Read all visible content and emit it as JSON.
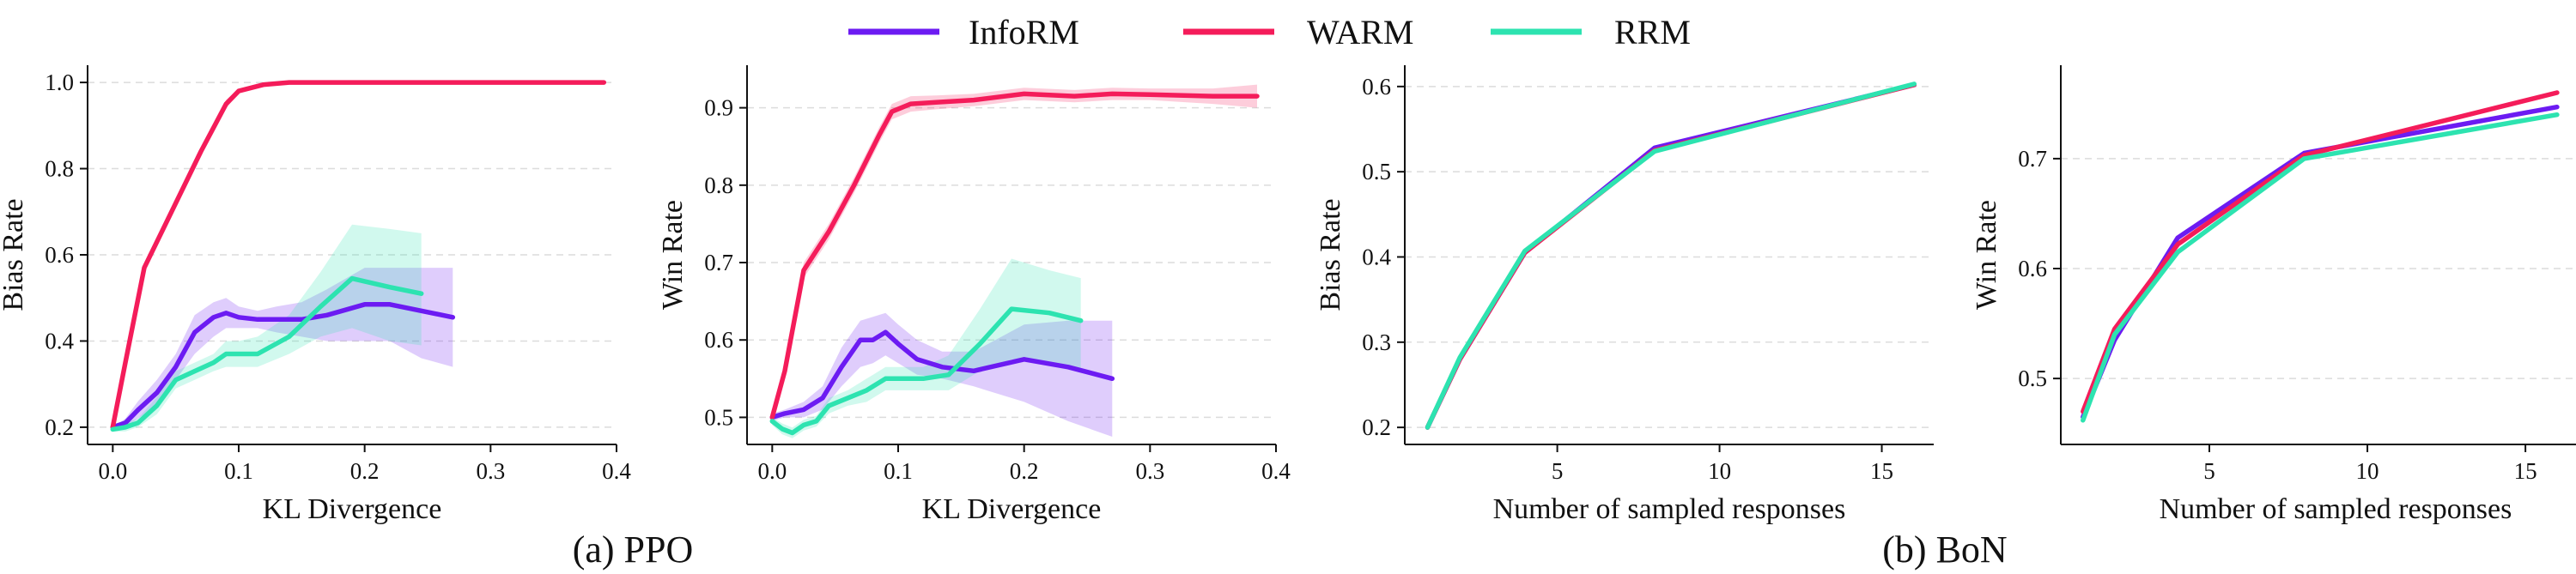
{
  "legend": [
    {
      "name": "InfoRM",
      "color": "#6c1bf2"
    },
    {
      "name": "WARM",
      "color": "#f41c5a"
    },
    {
      "name": "RRM",
      "color": "#2de3b0"
    }
  ],
  "captions": {
    "ppo": "(a) PPO",
    "bon": "(b) BoN"
  },
  "chart_data": [
    {
      "type": "line",
      "xlabel": "KL Divergence",
      "ylabel": "Bias Rate",
      "xlim": [
        -0.02,
        0.4
      ],
      "ylim": [
        0.16,
        1.04
      ],
      "xticks": [
        0.0,
        0.1,
        0.2,
        0.3,
        0.4
      ],
      "xtick_labels": [
        "0.0",
        "0.1",
        "0.2",
        "0.3",
        "0.4"
      ],
      "yticks": [
        0.2,
        0.4,
        0.6,
        0.8,
        1.0
      ],
      "ytick_labels": [
        "0.2",
        "0.4",
        "0.6",
        "0.8",
        "1.0"
      ],
      "grid": "horizontal dashed",
      "series": [
        {
          "name": "InfoRM",
          "color": "#6c1bf2",
          "x": [
            0.0,
            0.01,
            0.02,
            0.035,
            0.05,
            0.065,
            0.08,
            0.09,
            0.1,
            0.115,
            0.13,
            0.15,
            0.17,
            0.2,
            0.22,
            0.245,
            0.27
          ],
          "y": [
            0.2,
            0.21,
            0.24,
            0.28,
            0.34,
            0.42,
            0.455,
            0.465,
            0.455,
            0.45,
            0.45,
            0.45,
            0.46,
            0.485,
            0.485,
            0.47,
            0.455
          ],
          "lower": [
            0.2,
            0.2,
            0.22,
            0.25,
            0.31,
            0.37,
            0.41,
            0.43,
            0.43,
            0.43,
            0.42,
            0.41,
            0.4,
            0.4,
            0.4,
            0.36,
            0.34
          ],
          "upper": [
            0.2,
            0.22,
            0.26,
            0.31,
            0.37,
            0.46,
            0.49,
            0.5,
            0.48,
            0.47,
            0.48,
            0.49,
            0.52,
            0.57,
            0.57,
            0.57,
            0.57
          ]
        },
        {
          "name": "WARM",
          "color": "#f41c5a",
          "x": [
            0.0,
            0.01,
            0.025,
            0.05,
            0.07,
            0.09,
            0.1,
            0.12,
            0.14,
            0.2,
            0.3,
            0.39
          ],
          "y": [
            0.2,
            0.35,
            0.57,
            0.72,
            0.84,
            0.95,
            0.98,
            0.995,
            1.0,
            1.0,
            1.0,
            1.0
          ],
          "lower": [
            0.2,
            0.34,
            0.56,
            0.71,
            0.83,
            0.94,
            0.975,
            0.99,
            0.998,
            0.998,
            0.998,
            0.998
          ],
          "upper": [
            0.2,
            0.36,
            0.58,
            0.73,
            0.85,
            0.96,
            0.985,
            1.0,
            1.002,
            1.002,
            1.002,
            1.002
          ]
        },
        {
          "name": "RRM",
          "color": "#2de3b0",
          "x": [
            0.0,
            0.01,
            0.02,
            0.035,
            0.05,
            0.065,
            0.08,
            0.09,
            0.1,
            0.115,
            0.14,
            0.165,
            0.19,
            0.22,
            0.245
          ],
          "y": [
            0.195,
            0.2,
            0.21,
            0.25,
            0.31,
            0.33,
            0.35,
            0.37,
            0.37,
            0.37,
            0.41,
            0.48,
            0.545,
            0.525,
            0.51
          ],
          "lower": [
            0.19,
            0.19,
            0.2,
            0.23,
            0.29,
            0.31,
            0.33,
            0.34,
            0.34,
            0.34,
            0.37,
            0.41,
            0.43,
            0.4,
            0.39
          ],
          "upper": [
            0.2,
            0.21,
            0.22,
            0.27,
            0.33,
            0.35,
            0.37,
            0.4,
            0.4,
            0.41,
            0.46,
            0.56,
            0.67,
            0.66,
            0.65
          ]
        }
      ]
    },
    {
      "type": "line",
      "xlabel": "KL Divergence",
      "ylabel": "Win Rate",
      "xlim": [
        -0.02,
        0.4
      ],
      "ylim": [
        0.465,
        0.955
      ],
      "xticks": [
        0.0,
        0.1,
        0.2,
        0.3,
        0.4
      ],
      "xtick_labels": [
        "0.0",
        "0.1",
        "0.2",
        "0.3",
        "0.4"
      ],
      "yticks": [
        0.5,
        0.6,
        0.7,
        0.8,
        0.9
      ],
      "ytick_labels": [
        "0.5",
        "0.6",
        "0.7",
        "0.8",
        "0.9"
      ],
      "grid": "horizontal dashed",
      "series": [
        {
          "name": "InfoRM",
          "color": "#6c1bf2",
          "x": [
            0.0,
            0.01,
            0.025,
            0.04,
            0.055,
            0.07,
            0.08,
            0.09,
            0.1,
            0.115,
            0.135,
            0.16,
            0.2,
            0.235,
            0.27
          ],
          "y": [
            0.5,
            0.505,
            0.51,
            0.525,
            0.565,
            0.6,
            0.6,
            0.61,
            0.595,
            0.575,
            0.565,
            0.56,
            0.575,
            0.565,
            0.55
          ],
          "lower": [
            0.495,
            0.5,
            0.5,
            0.51,
            0.54,
            0.565,
            0.57,
            0.58,
            0.57,
            0.555,
            0.55,
            0.54,
            0.52,
            0.495,
            0.475
          ],
          "upper": [
            0.505,
            0.51,
            0.52,
            0.54,
            0.59,
            0.625,
            0.63,
            0.635,
            0.62,
            0.6,
            0.585,
            0.585,
            0.62,
            0.625,
            0.625
          ]
        },
        {
          "name": "WARM",
          "color": "#f41c5a",
          "x": [
            0.0,
            0.01,
            0.025,
            0.045,
            0.065,
            0.085,
            0.095,
            0.11,
            0.13,
            0.16,
            0.2,
            0.24,
            0.27,
            0.3,
            0.35,
            0.385
          ],
          "y": [
            0.5,
            0.56,
            0.69,
            0.74,
            0.8,
            0.865,
            0.895,
            0.905,
            0.907,
            0.91,
            0.918,
            0.915,
            0.918,
            0.917,
            0.915,
            0.915
          ],
          "lower": [
            0.495,
            0.55,
            0.68,
            0.73,
            0.79,
            0.855,
            0.885,
            0.895,
            0.898,
            0.902,
            0.91,
            0.907,
            0.91,
            0.91,
            0.905,
            0.9
          ],
          "upper": [
            0.505,
            0.57,
            0.7,
            0.75,
            0.81,
            0.875,
            0.905,
            0.915,
            0.916,
            0.918,
            0.926,
            0.923,
            0.926,
            0.925,
            0.925,
            0.93
          ]
        },
        {
          "name": "RRM",
          "color": "#2de3b0",
          "x": [
            0.0,
            0.008,
            0.016,
            0.025,
            0.035,
            0.045,
            0.06,
            0.075,
            0.09,
            0.105,
            0.12,
            0.14,
            0.165,
            0.19,
            0.22,
            0.245
          ],
          "y": [
            0.495,
            0.485,
            0.48,
            0.49,
            0.495,
            0.515,
            0.525,
            0.535,
            0.55,
            0.55,
            0.55,
            0.555,
            0.595,
            0.64,
            0.635,
            0.625
          ],
          "lower": [
            0.49,
            0.478,
            0.473,
            0.483,
            0.488,
            0.505,
            0.515,
            0.52,
            0.535,
            0.535,
            0.535,
            0.535,
            0.56,
            0.575,
            0.57,
            0.56
          ],
          "upper": [
            0.5,
            0.492,
            0.487,
            0.497,
            0.502,
            0.525,
            0.535,
            0.55,
            0.565,
            0.565,
            0.565,
            0.58,
            0.64,
            0.705,
            0.69,
            0.68
          ]
        }
      ]
    },
    {
      "type": "line",
      "xlabel": "Number of sampled responses",
      "ylabel": "Bias Rate",
      "xlim": [
        0.3,
        16.6
      ],
      "ylim": [
        0.18,
        0.625
      ],
      "xticks": [
        5,
        10,
        15
      ],
      "xtick_labels": [
        "5",
        "10",
        "15"
      ],
      "yticks": [
        0.2,
        0.3,
        0.4,
        0.5,
        0.6
      ],
      "ytick_labels": [
        "0.2",
        "0.3",
        "0.4",
        "0.5",
        "0.6"
      ],
      "grid": "horizontal dashed",
      "series": [
        {
          "name": "InfoRM",
          "color": "#6c1bf2",
          "x": [
            1,
            2,
            4,
            8,
            16
          ],
          "y": [
            0.2,
            0.28,
            0.405,
            0.528,
            0.602
          ]
        },
        {
          "name": "WARM",
          "color": "#f41c5a",
          "x": [
            1,
            2,
            4,
            8,
            16
          ],
          "y": [
            0.2,
            0.28,
            0.405,
            0.525,
            0.602
          ]
        },
        {
          "name": "RRM",
          "color": "#2de3b0",
          "x": [
            1,
            2,
            4,
            8,
            16
          ],
          "y": [
            0.2,
            0.282,
            0.407,
            0.524,
            0.603
          ]
        }
      ]
    },
    {
      "type": "line",
      "xlabel": "Number of sampled responses",
      "ylabel": "Win Rate",
      "xlim": [
        0.3,
        16.6
      ],
      "ylim": [
        0.44,
        0.785
      ],
      "xticks": [
        5,
        10,
        15
      ],
      "xtick_labels": [
        "5",
        "10",
        "15"
      ],
      "yticks": [
        0.5,
        0.6,
        0.7
      ],
      "ytick_labels": [
        "0.5",
        "0.6",
        "0.7"
      ],
      "grid": "horizontal dashed",
      "series": [
        {
          "name": "InfoRM",
          "color": "#6c1bf2",
          "x": [
            1,
            2,
            4,
            8,
            16
          ],
          "y": [
            0.465,
            0.535,
            0.628,
            0.705,
            0.747
          ]
        },
        {
          "name": "WARM",
          "color": "#f41c5a",
          "x": [
            1,
            2,
            4,
            8,
            16
          ],
          "y": [
            0.47,
            0.545,
            0.622,
            0.703,
            0.76
          ]
        },
        {
          "name": "RRM",
          "color": "#2de3b0",
          "x": [
            1,
            2,
            4,
            8,
            16
          ],
          "y": [
            0.462,
            0.54,
            0.615,
            0.7,
            0.74
          ]
        }
      ]
    }
  ]
}
